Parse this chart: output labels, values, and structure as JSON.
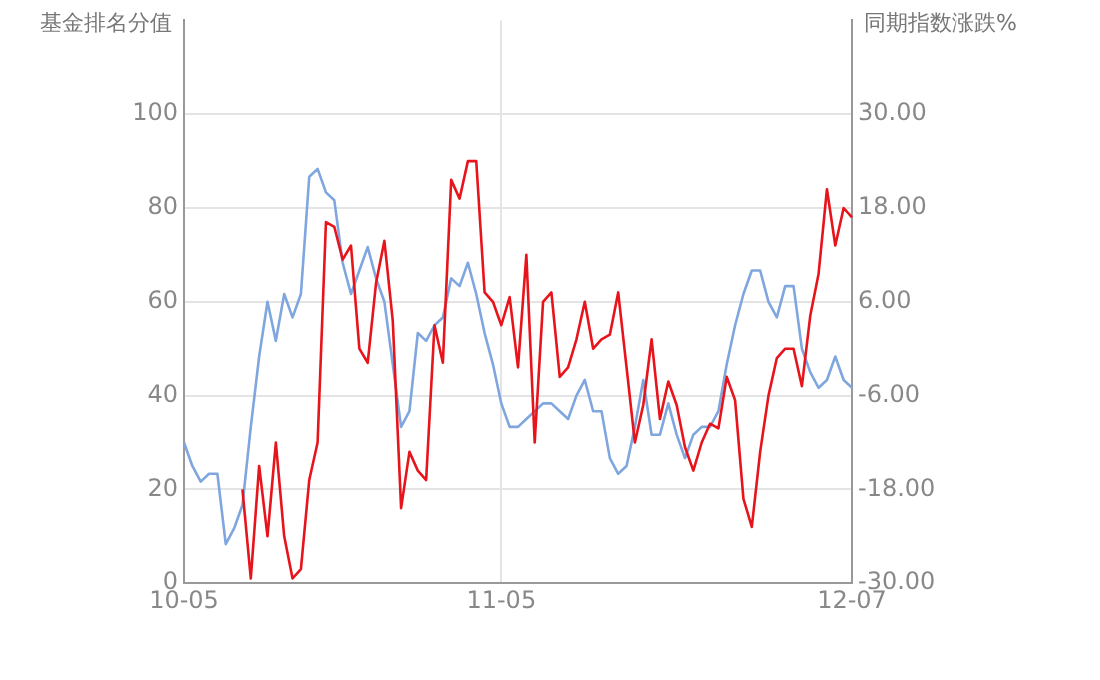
{
  "chart_data": {
    "type": "line",
    "ylabel": "基金排名分值",
    "y2label": "同期指数涨跌%",
    "categories": [
      "10-05",
      null,
      null,
      null,
      null,
      null,
      null,
      null,
      null,
      null,
      null,
      null,
      null,
      null,
      null,
      null,
      null,
      null,
      null,
      null,
      null,
      null,
      null,
      null,
      null,
      null,
      null,
      null,
      null,
      null,
      null,
      null,
      null,
      null,
      null,
      null,
      null,
      null,
      "11-05",
      null,
      null,
      null,
      null,
      null,
      null,
      null,
      null,
      null,
      null,
      null,
      null,
      null,
      null,
      null,
      null,
      null,
      null,
      null,
      null,
      null,
      null,
      null,
      null,
      null,
      null,
      null,
      null,
      null,
      null,
      null,
      null,
      null,
      null,
      null,
      null,
      null,
      null,
      null,
      null,
      null,
      "12-07"
    ],
    "series": [
      {
        "color": "#e8141c",
        "values": [
          null,
          null,
          null,
          null,
          null,
          null,
          null,
          20,
          1,
          25,
          10,
          30,
          10,
          1,
          3,
          22,
          30,
          77,
          76,
          69,
          72,
          50,
          47,
          64,
          73,
          56,
          16,
          28,
          24,
          22,
          55,
          47,
          86,
          82,
          90,
          90,
          62,
          60,
          55,
          61,
          46,
          70,
          30,
          60,
          62,
          44,
          46,
          52,
          60,
          50,
          52,
          53,
          62,
          46,
          30,
          38,
          52,
          35,
          43,
          38,
          29,
          24,
          30,
          34,
          33,
          44,
          39,
          18,
          12,
          28,
          40,
          48,
          50,
          50,
          42,
          57,
          66,
          84,
          72,
          80,
          78
        ]
      },
      {
        "color": "#7fa6de",
        "axis": "y2",
        "values": [
          -12,
          -15,
          -17,
          -16,
          -16,
          -25,
          -23,
          -20,
          -10,
          -1,
          6,
          1,
          7,
          4,
          7,
          22,
          23,
          20,
          19,
          11,
          7,
          10,
          13,
          9,
          6,
          -2,
          -10,
          -8,
          2,
          1,
          3,
          4,
          9,
          8,
          11,
          7,
          2,
          -2,
          -7,
          -10,
          -10,
          -9,
          -8,
          -7,
          -7,
          -8,
          -9,
          -6,
          -4,
          -8,
          -8,
          -14,
          -16,
          -15,
          -10,
          -4,
          -11,
          -11,
          -7,
          -11,
          -14,
          -11,
          -10,
          -10,
          -8,
          -2,
          3,
          7,
          10,
          10,
          6,
          4,
          8,
          8,
          0,
          -3,
          -5,
          -4,
          -1,
          -4,
          -5
        ]
      }
    ],
    "ylim": [
      0,
      120
    ],
    "yticks": [
      0,
      20,
      40,
      60,
      80,
      100
    ],
    "y2lim": [
      -30,
      42
    ],
    "y2ticks": [
      {
        "value": -30,
        "label": "-30.00"
      },
      {
        "value": -18,
        "label": "-18.00"
      },
      {
        "value": -6,
        "label": "-6.00"
      },
      {
        "value": 6,
        "label": "6.00"
      },
      {
        "value": 18,
        "label": "18.00"
      },
      {
        "value": 30,
        "label": "30.00"
      }
    ],
    "grid": true,
    "marker": "none",
    "line_style": "solid"
  }
}
